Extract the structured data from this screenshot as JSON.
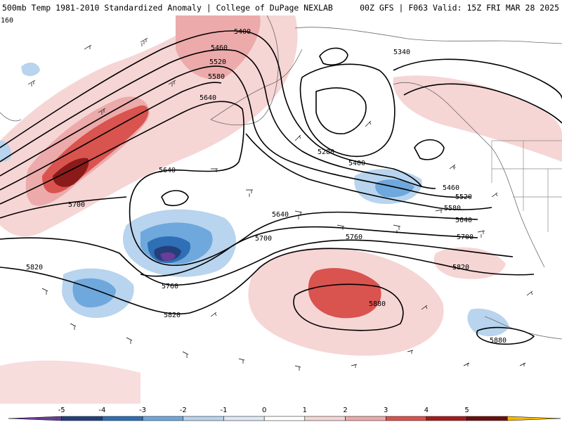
{
  "header": {
    "title_left": "500mb Temp 1981-2010 Standardized Anomaly | College of DuPage NEXLAB",
    "title_right": "00Z GFS | F063 Valid: 15Z FRI MAR 28 2025"
  },
  "map": {
    "corner_label": "160",
    "contour_labels": [
      "5400",
      "5460",
      "5520",
      "5580",
      "5640",
      "5280",
      "5340",
      "5400",
      "5460",
      "5520",
      "5580",
      "5640",
      "5700",
      "5640",
      "5700",
      "5640",
      "5760",
      "5700",
      "5820",
      "5760",
      "5820",
      "5820",
      "5880",
      "5880"
    ]
  },
  "colorbar": {
    "ticks": [
      "-5",
      "-4",
      "-3",
      "-2",
      "-1",
      "0",
      "1",
      "2",
      "3",
      "4",
      "5"
    ],
    "colors": [
      "#6a3d9a",
      "#253f7a",
      "#2f6fb5",
      "#6fa8dc",
      "#b8d4ee",
      "#ddeaf6",
      "#ffffff",
      "#f6d5d5",
      "#ecaaaa",
      "#d9534f",
      "#a51d1d",
      "#6b0f0f",
      "#f5b800"
    ]
  }
}
